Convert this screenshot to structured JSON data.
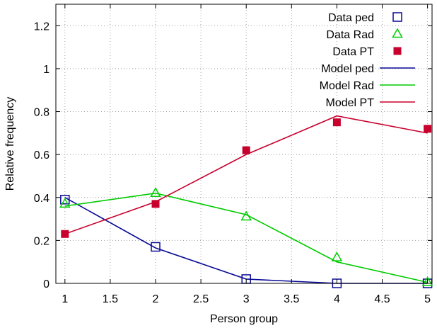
{
  "chart_data": {
    "type": "line",
    "xlabel": "Person group",
    "ylabel": "Relative frequency",
    "xlim": [
      0.9,
      5.05
    ],
    "ylim": [
      0,
      1.3
    ],
    "x_ticks": [
      1,
      1.5,
      2,
      2.5,
      3,
      3.5,
      4,
      4.5,
      5
    ],
    "x_tick_labels": [
      "1",
      "1.5",
      "2",
      "2.5",
      "3",
      "3.5",
      "4",
      "4.5",
      "5"
    ],
    "y_ticks": [
      0,
      0.2,
      0.4,
      0.6,
      0.8,
      1,
      1.2
    ],
    "y_tick_labels": [
      "0",
      "0.2",
      "0.4",
      "0.6",
      "0.8",
      "1",
      "1.2"
    ],
    "grid": true,
    "legend_position": "top-right",
    "x": [
      1,
      2,
      3,
      4,
      5
    ],
    "series": [
      {
        "name": "Data ped",
        "kind": "points",
        "marker": "open-square",
        "color": "#0a0a96",
        "values": [
          0.39,
          0.17,
          0.02,
          0.0,
          0.0
        ]
      },
      {
        "name": "Data Rad",
        "kind": "points",
        "marker": "open-triangle",
        "color": "#00cc00",
        "values": [
          0.37,
          0.42,
          0.31,
          0.12,
          0.005
        ]
      },
      {
        "name": "Data PT",
        "kind": "points",
        "marker": "filled-square",
        "color": "#c8002d",
        "values": [
          0.23,
          0.37,
          0.62,
          0.75,
          0.72
        ]
      },
      {
        "name": "Model ped",
        "kind": "line",
        "color": "#0a0a96",
        "values": [
          0.4,
          0.165,
          0.02,
          0.0,
          0.0
        ]
      },
      {
        "name": "Model Rad",
        "kind": "line",
        "color": "#00cc00",
        "values": [
          0.36,
          0.42,
          0.32,
          0.1,
          0.005
        ]
      },
      {
        "name": "Model PT",
        "kind": "line",
        "color": "#c8002d",
        "values": [
          0.23,
          0.38,
          0.6,
          0.78,
          0.7
        ]
      }
    ]
  }
}
